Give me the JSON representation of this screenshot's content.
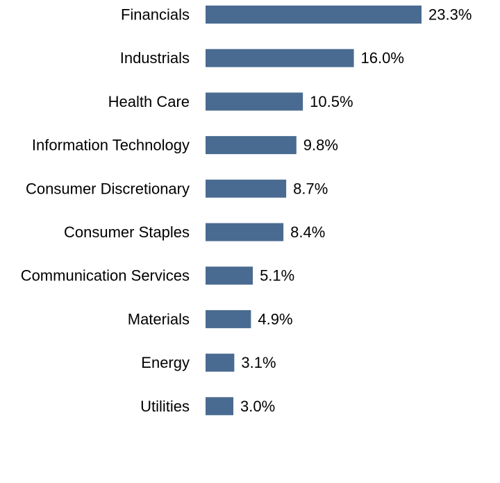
{
  "chart_data": {
    "type": "bar",
    "orientation": "horizontal",
    "categories": [
      "Financials",
      "Industrials",
      "Health Care",
      "Information Technology",
      "Consumer Discretionary",
      "Consumer Staples",
      "Communication Services",
      "Materials",
      "Energy",
      "Utilities"
    ],
    "values": [
      23.3,
      16.0,
      10.5,
      9.8,
      8.7,
      8.4,
      5.1,
      4.9,
      3.1,
      3.0
    ],
    "value_labels": [
      "23.3%",
      "16.0%",
      "10.5%",
      "9.8%",
      "8.7%",
      "8.4%",
      "5.1%",
      "4.9%",
      "3.1%",
      "3.0%"
    ],
    "title": "",
    "xlabel": "",
    "ylabel": "",
    "xlim": [
      0,
      23.3
    ],
    "grid": false,
    "legend": "none",
    "bar_color": "#4a6b91"
  }
}
